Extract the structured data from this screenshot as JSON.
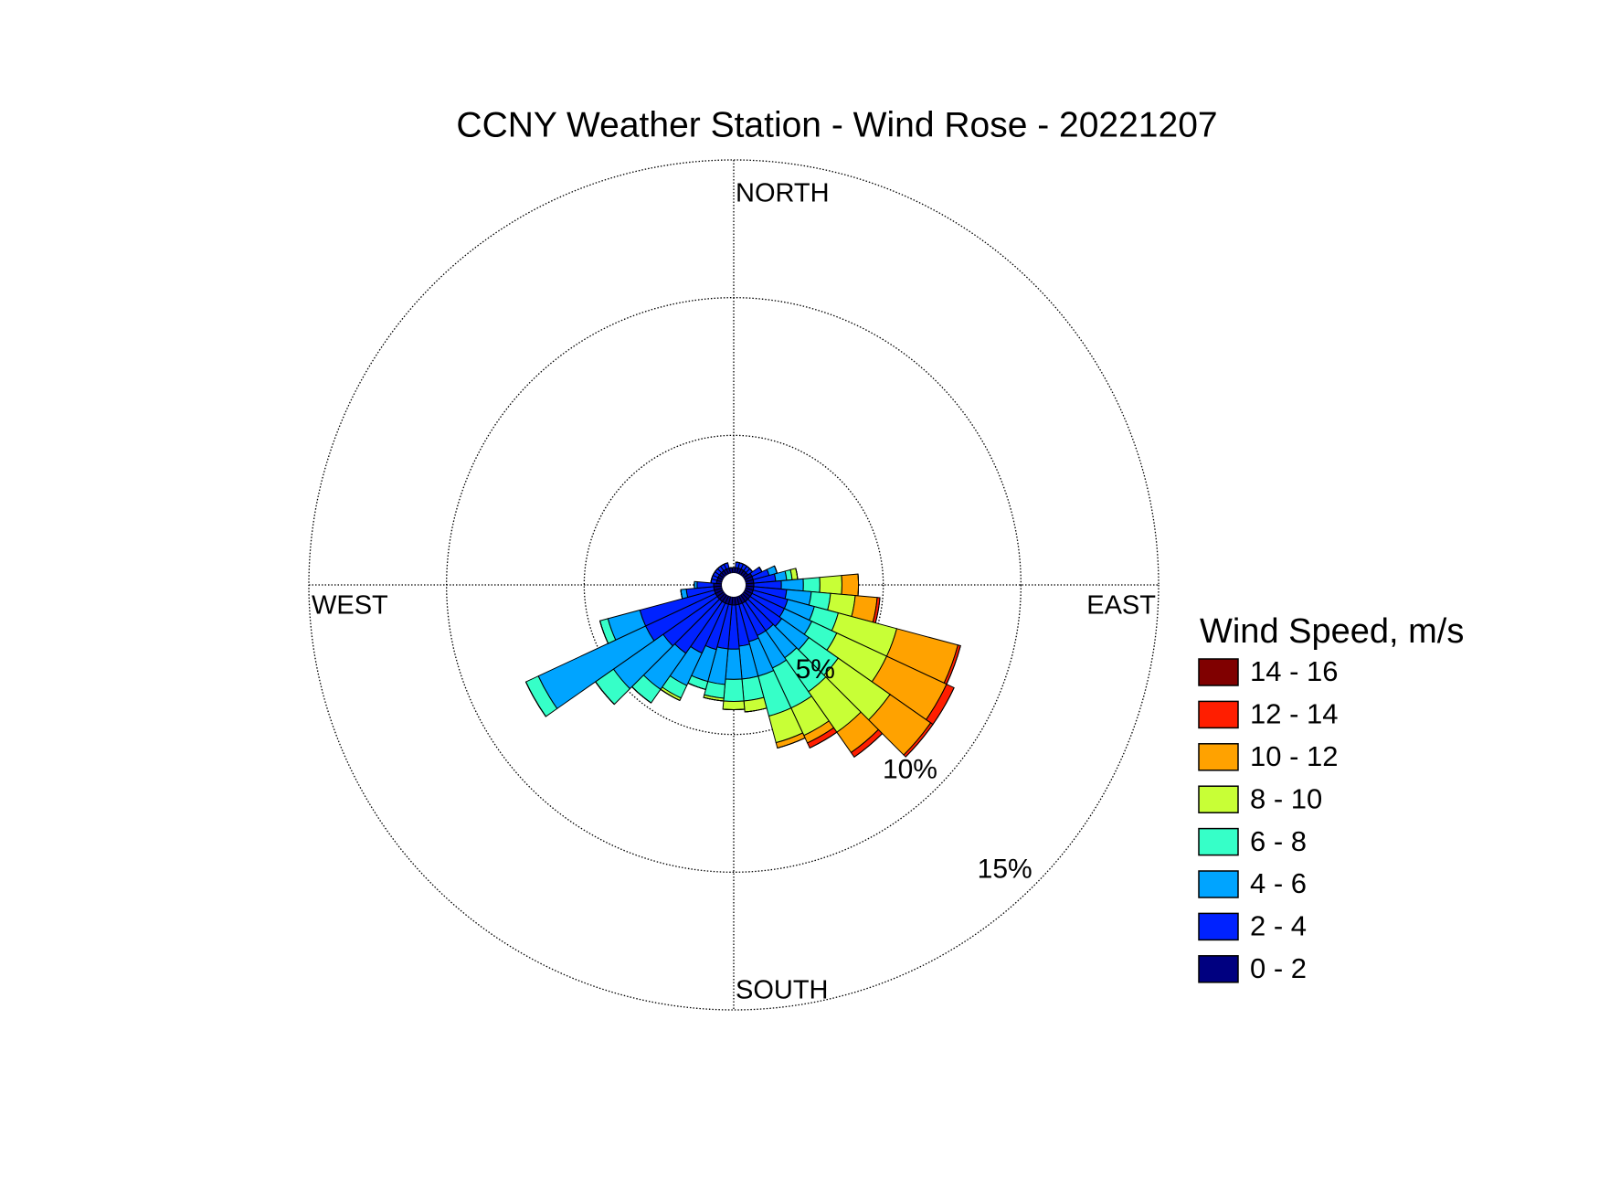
{
  "chart_data": {
    "type": "wind_rose",
    "title": "CCNY Weather Station - Wind Rose - 20221207",
    "direction_labels": {
      "north": "NORTH",
      "east": "EAST",
      "south": "SOUTH",
      "west": "WEST"
    },
    "legend_title": "Wind Speed, m/s",
    "categories": [
      null,
      null,
      null,
      null,
      null,
      null,
      null,
      null,
      null,
      null,
      null,
      null,
      null,
      null,
      null,
      null,
      null,
      null,
      null,
      null,
      null,
      null,
      null,
      null,
      null,
      null,
      null,
      null,
      null,
      null,
      null,
      null,
      null,
      null,
      null,
      null
    ],
    "rlim": [
      0,
      15
    ],
    "rticks": [
      {
        "value": 5,
        "label": "5%"
      },
      {
        "value": 10,
        "label": "10%"
      },
      {
        "value": 15,
        "label": "15%"
      }
    ],
    "grid": true,
    "series": [
      {
        "name": "0 - 2",
        "color": "#000080",
        "values": [
          0.2,
          0.2,
          0.2,
          0.2,
          0.2,
          0.2,
          0.3,
          0.3,
          0.3,
          0.3,
          0.3,
          0.3,
          0.3,
          0.3,
          0.3,
          0.3,
          0.3,
          0.3,
          0.3,
          0.3,
          0.3,
          0.3,
          0.3,
          0.3,
          0.3,
          0.3,
          0.3,
          0.3,
          0.2,
          0.2,
          0.2,
          0.2,
          0.2,
          0.2,
          0.2,
          0.2
        ]
      },
      {
        "name": "2 - 4",
        "color": "#0022ff",
        "values": [
          0,
          0.2,
          0.2,
          0.2,
          0.2,
          0.2,
          0.4,
          0.6,
          0.8,
          1.0,
          1.2,
          1.3,
          1.3,
          1.4,
          1.3,
          1.3,
          1.4,
          1.5,
          1.6,
          1.6,
          1.7,
          2.0,
          2.3,
          2.4,
          2.8,
          2.8,
          1.0,
          0.6,
          0.2,
          0.2,
          0.2,
          0.2,
          0.2,
          0.2,
          0.2,
          0
        ]
      },
      {
        "name": "4 - 6",
        "color": "#00a4ff",
        "values": [
          0,
          0,
          0,
          0,
          0,
          0,
          0,
          0.3,
          0.4,
          0.8,
          0.9,
          1.0,
          1.1,
          1.2,
          1.2,
          1.3,
          1.3,
          1.2,
          1.1,
          1.3,
          1.2,
          1.3,
          1.6,
          2.2,
          4.3,
          1.2,
          0.2,
          0.1,
          0,
          0,
          0,
          0,
          0,
          0,
          0,
          0
        ]
      },
      {
        "name": "6 - 8",
        "color": "#36ffc8",
        "values": [
          0,
          0,
          0,
          0,
          0,
          0,
          0,
          0,
          0.2,
          0.6,
          0.7,
          0.9,
          1.0,
          1.3,
          1.5,
          1.6,
          1.5,
          0.8,
          0.8,
          0.5,
          0.3,
          0.5,
          0.6,
          0.8,
          0.5,
          0.3,
          0,
          0,
          0,
          0,
          0,
          0,
          0,
          0,
          0,
          0
        ]
      },
      {
        "name": "8 - 10",
        "color": "#c8ff36",
        "values": [
          0,
          0,
          0,
          0,
          0,
          0,
          0,
          0,
          0.2,
          0.8,
          0.9,
          2.2,
          2.0,
          2.3,
          1.8,
          1.1,
          1.0,
          0.4,
          0.3,
          0.1,
          0,
          0.1,
          0,
          0,
          0,
          0,
          0,
          0,
          0,
          0,
          0,
          0,
          0,
          0,
          0,
          0
        ]
      },
      {
        "name": "10 - 12",
        "color": "#ffa200",
        "values": [
          0,
          0,
          0,
          0,
          0,
          0,
          0,
          0,
          0,
          0.6,
          0.8,
          2.3,
          2.4,
          1.8,
          0.9,
          0.3,
          0.2,
          0,
          0,
          0,
          0,
          0,
          0,
          0,
          0,
          0,
          0,
          0,
          0,
          0,
          0,
          0,
          0,
          0,
          0,
          0
        ]
      },
      {
        "name": "12 - 14",
        "color": "#ff1e00",
        "values": [
          0,
          0,
          0,
          0,
          0,
          0,
          0,
          0,
          0,
          0,
          0.1,
          0.1,
          0.3,
          0.1,
          0.2,
          0.2,
          0,
          0,
          0,
          0,
          0,
          0,
          0,
          0,
          0,
          0,
          0,
          0,
          0,
          0,
          0,
          0,
          0,
          0,
          0,
          0
        ]
      },
      {
        "name": "14 - 16",
        "color": "#800000",
        "values": [
          0,
          0,
          0,
          0,
          0,
          0,
          0,
          0,
          0,
          0,
          0,
          0,
          0,
          0,
          0,
          0,
          0,
          0,
          0,
          0,
          0,
          0,
          0,
          0,
          0,
          0,
          0,
          0,
          0,
          0,
          0,
          0,
          0,
          0,
          0,
          0
        ]
      }
    ]
  }
}
